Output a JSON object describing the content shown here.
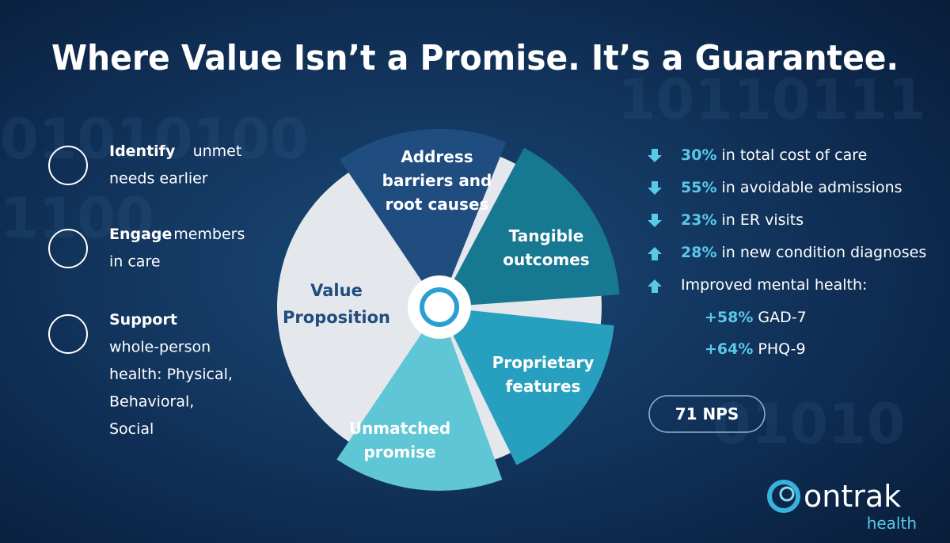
{
  "header": {
    "title": "Where Value Isn’t a Promise. It’s a Guarantee."
  },
  "left_items": [
    {
      "bold": "Identify",
      "lines": [
        "unmet",
        "needs earlier"
      ]
    },
    {
      "bold": "Engage",
      "lines": [
        "members",
        "in care"
      ]
    },
    {
      "bold": "Support",
      "lines": [
        "",
        "whole-person",
        "health: Physical,",
        "Behavioral,",
        "Social"
      ]
    }
  ],
  "wheel": {
    "center_label": [
      "Value",
      "Proposition"
    ],
    "segments": [
      {
        "lines": [
          "Address",
          "barriers and",
          "root causes"
        ]
      },
      {
        "lines": [
          "Tangible",
          "outcomes"
        ]
      },
      {
        "lines": [
          "Proprietary",
          "features"
        ]
      },
      {
        "lines": [
          "Unmatched",
          "promise"
        ]
      }
    ]
  },
  "stats": [
    {
      "direction": "down",
      "value": "30%",
      "text": "in total cost of care"
    },
    {
      "direction": "down",
      "value": "55%",
      "text": "in avoidable admissions"
    },
    {
      "direction": "down",
      "value": "23%",
      "text": "in ER visits"
    },
    {
      "direction": "up",
      "value": "28%",
      "text": "in new condition diagnoses"
    },
    {
      "direction": "up",
      "value": "",
      "text": "Improved mental health:"
    }
  ],
  "sub_stats": [
    {
      "value": "+58%",
      "text": "GAD-7"
    },
    {
      "value": "+64%",
      "text": "PHQ-9"
    }
  ],
  "nps": "71 NPS",
  "logo": {
    "name": "ontrak",
    "tagline": "health"
  }
}
